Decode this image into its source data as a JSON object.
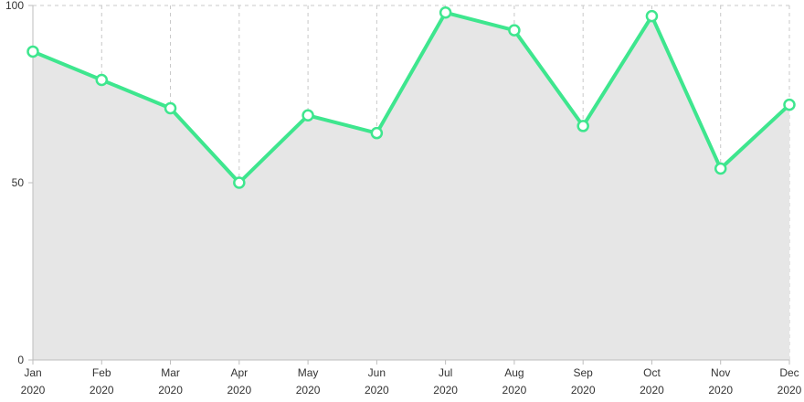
{
  "chart_data": {
    "type": "area",
    "title": "",
    "xlabel": "",
    "ylabel": "",
    "categories": [
      [
        "Jan",
        "2020"
      ],
      [
        "Feb",
        "2020"
      ],
      [
        "Mar",
        "2020"
      ],
      [
        "Apr",
        "2020"
      ],
      [
        "May",
        "2020"
      ],
      [
        "Jun",
        "2020"
      ],
      [
        "Jul",
        "2020"
      ],
      [
        "Aug",
        "2020"
      ],
      [
        "Sep",
        "2020"
      ],
      [
        "Oct",
        "2020"
      ],
      [
        "Nov",
        "2020"
      ],
      [
        "Dec",
        "2020"
      ]
    ],
    "values": [
      87,
      79,
      71,
      50,
      69,
      64,
      98,
      93,
      66,
      97,
      54,
      72
    ],
    "ylim": [
      0,
      100
    ],
    "yticks": [
      0,
      50,
      100
    ],
    "grid": true,
    "legend": "none",
    "colors": {
      "line": "#3ee68e",
      "area": "#e6e6e6",
      "marker_fill": "#ffffff",
      "grid": "#c8c8c8",
      "axis": "#bdbdbd"
    }
  }
}
